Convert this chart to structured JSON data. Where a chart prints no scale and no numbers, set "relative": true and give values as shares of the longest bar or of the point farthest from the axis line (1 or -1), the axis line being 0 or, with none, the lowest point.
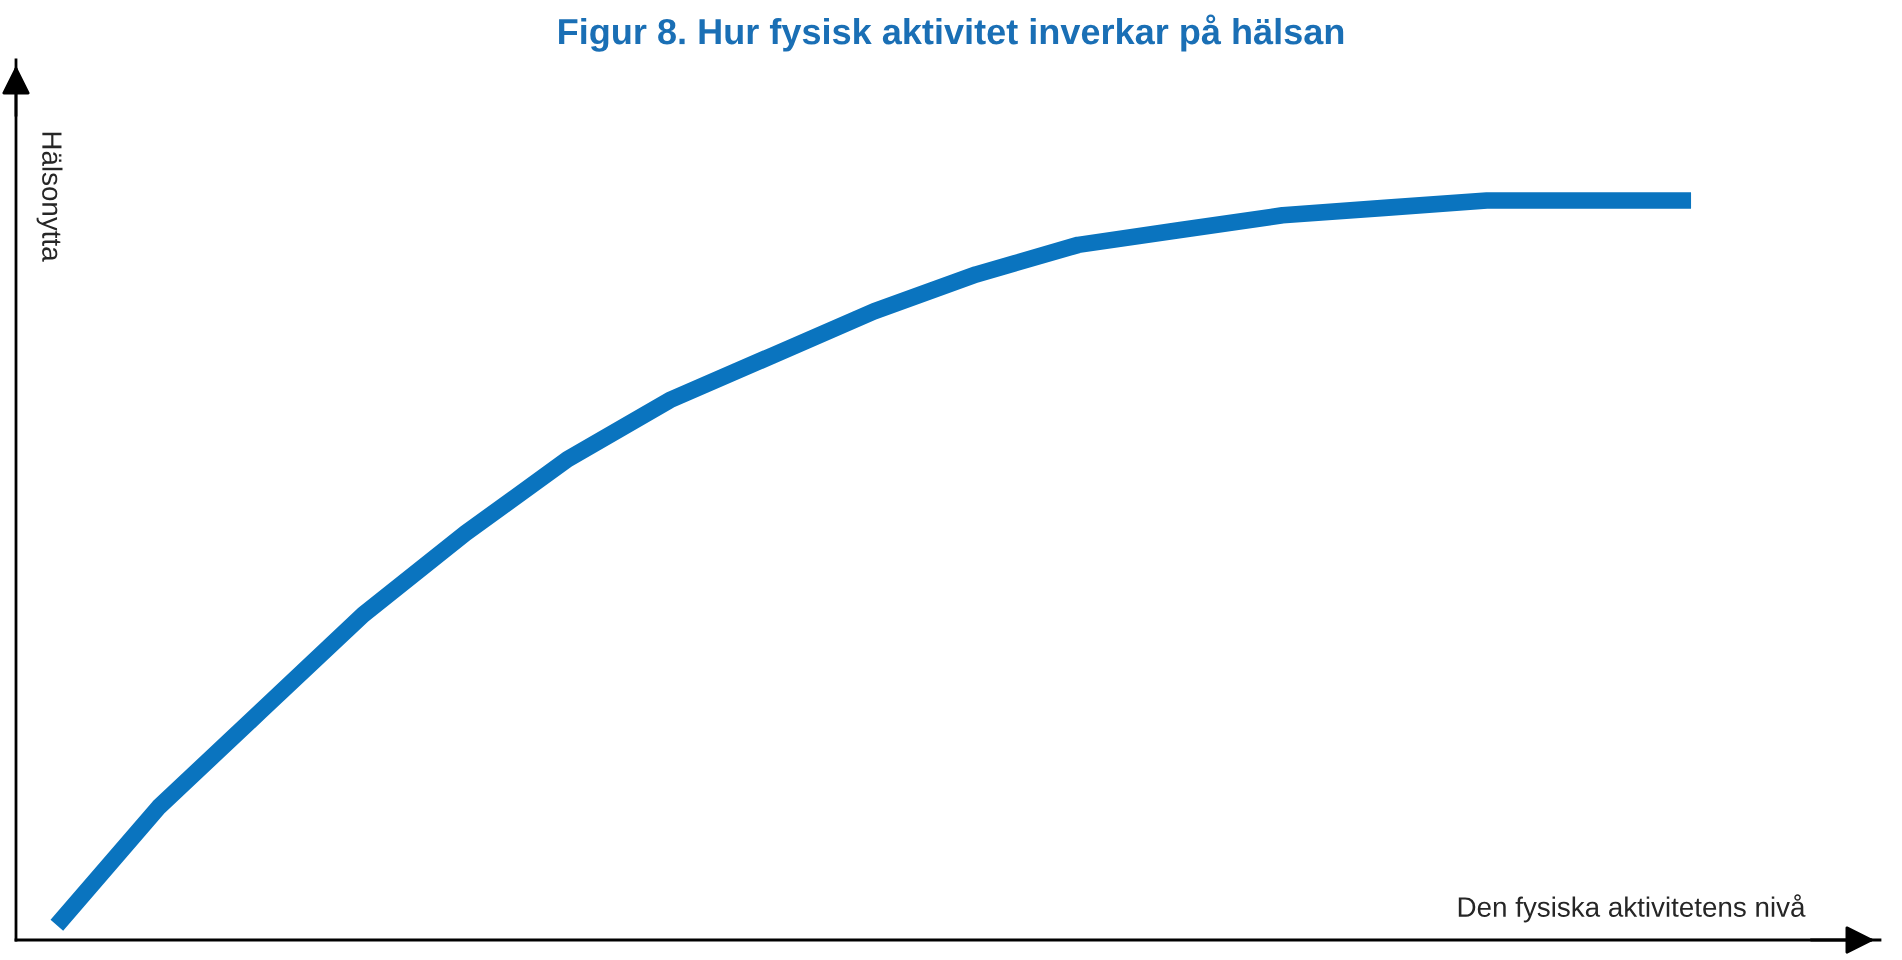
{
  "chart_data": {
    "type": "line",
    "title": "Figur 8. Hur fysisk aktivitet inverkar på hälsan",
    "xlabel": "Den fysiska aktivitetens nivå",
    "ylabel": "Hälsonytta",
    "relative": true,
    "categories": [
      null,
      null,
      null,
      null,
      null,
      null,
      null,
      null,
      null,
      null,
      null,
      null,
      null,
      null,
      null,
      null,
      null
    ],
    "series": [
      {
        "color": "#0a74bf",
        "values": [
          0.02,
          0.18,
          0.31,
          0.44,
          0.55,
          0.65,
          0.73,
          0.79,
          0.85,
          0.9,
          0.94,
          0.96,
          0.98,
          0.99,
          1,
          1,
          1
        ]
      }
    ]
  }
}
